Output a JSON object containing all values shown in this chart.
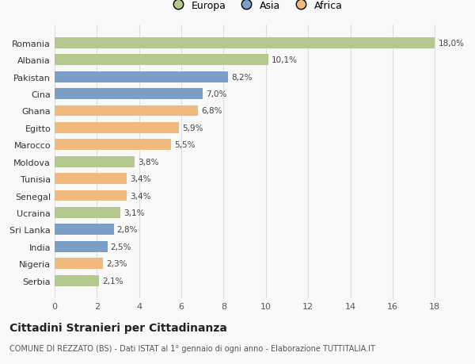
{
  "countries": [
    "Romania",
    "Albania",
    "Pakistan",
    "Cina",
    "Ghana",
    "Egitto",
    "Marocco",
    "Moldova",
    "Tunisia",
    "Senegal",
    "Ucraina",
    "Sri Lanka",
    "India",
    "Nigeria",
    "Serbia"
  ],
  "values": [
    18.0,
    10.1,
    8.2,
    7.0,
    6.8,
    5.9,
    5.5,
    3.8,
    3.4,
    3.4,
    3.1,
    2.8,
    2.5,
    2.3,
    2.1
  ],
  "labels": [
    "18,0%",
    "10,1%",
    "8,2%",
    "7,0%",
    "6,8%",
    "5,9%",
    "5,5%",
    "3,8%",
    "3,4%",
    "3,4%",
    "3,1%",
    "2,8%",
    "2,5%",
    "2,3%",
    "2,1%"
  ],
  "continents": [
    "Europa",
    "Europa",
    "Asia",
    "Asia",
    "Africa",
    "Africa",
    "Africa",
    "Europa",
    "Africa",
    "Africa",
    "Europa",
    "Asia",
    "Asia",
    "Africa",
    "Europa"
  ],
  "continent_colors": {
    "Europa": "#b5c98e",
    "Asia": "#7b9fc7",
    "Africa": "#f2b97e"
  },
  "legend_colors": {
    "Europa": "#b5c98e",
    "Asia": "#7b9fc7",
    "Africa": "#f2b97e"
  },
  "xlim": [
    0,
    19
  ],
  "xticks": [
    0,
    2,
    4,
    6,
    8,
    10,
    12,
    14,
    16,
    18
  ],
  "title": "Cittadini Stranieri per Cittadinanza",
  "subtitle": "COMUNE DI REZZATO (BS) - Dati ISTAT al 1° gennaio di ogni anno - Elaborazione TUTTITALIA.IT",
  "background_color": "#f9f9f9",
  "bar_height": 0.65,
  "grid_color": "#dddddd",
  "label_fontsize": 7.5,
  "ylabel_fontsize": 8,
  "xtick_fontsize": 8,
  "title_fontsize": 10,
  "subtitle_fontsize": 7,
  "legend_fontsize": 9
}
